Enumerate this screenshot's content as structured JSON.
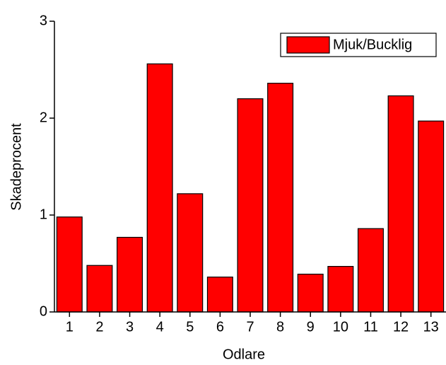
{
  "chart_data": {
    "type": "bar",
    "categories": [
      "1",
      "2",
      "3",
      "4",
      "5",
      "6",
      "7",
      "8",
      "9",
      "10",
      "11",
      "12",
      "13"
    ],
    "series": [
      {
        "name": "Mjuk/Bucklig",
        "color": "#ff0000",
        "values": [
          0.98,
          0.48,
          0.77,
          2.56,
          1.22,
          0.36,
          2.2,
          2.36,
          0.39,
          0.47,
          0.86,
          2.23,
          1.97
        ]
      }
    ],
    "ylim": [
      0,
      3
    ],
    "yticks": [
      0,
      1,
      2,
      3
    ],
    "x_label": "Odlare",
    "y_label": "Skadeprocent",
    "legend": "top-right"
  }
}
